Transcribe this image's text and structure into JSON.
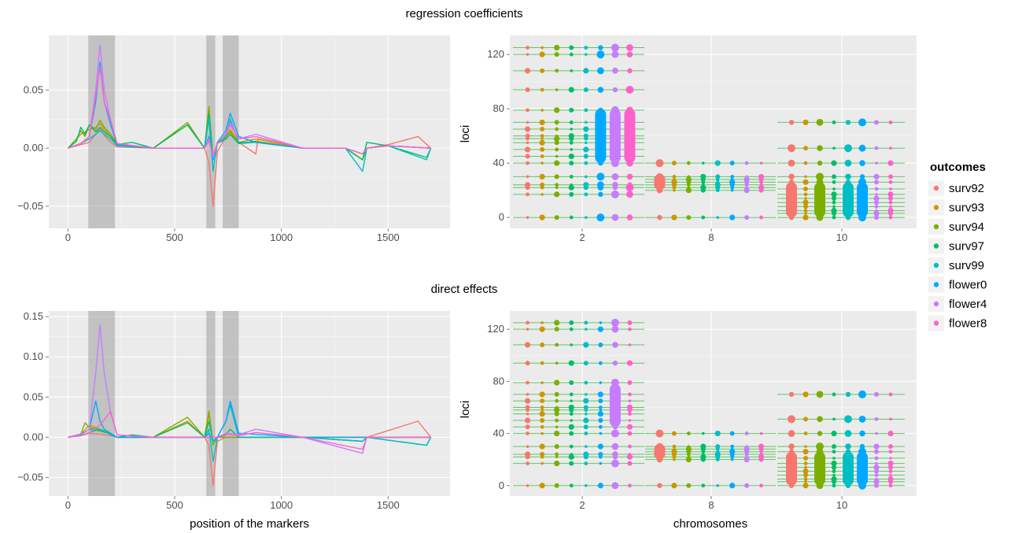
{
  "titles": {
    "top": "regression coefficients",
    "bottom": "direct effects"
  },
  "axis_labels": {
    "bottom_left_x": "position of the markers",
    "right_y": "loci",
    "bottom_right_x": "chromosomes"
  },
  "legend": {
    "title": "outcomes",
    "items": [
      {
        "label": "surv92",
        "color": "#F8766D"
      },
      {
        "label": "surv93",
        "color": "#CD9600"
      },
      {
        "label": "surv94",
        "color": "#7CAE00"
      },
      {
        "label": "surv97",
        "color": "#00BE67"
      },
      {
        "label": "surv99",
        "color": "#00BFC4"
      },
      {
        "label": "flower0",
        "color": "#00A9FF"
      },
      {
        "label": "flower4",
        "color": "#C77CFF"
      },
      {
        "label": "flower8",
        "color": "#FF61CC"
      }
    ]
  },
  "chart_data": [
    {
      "type": "line",
      "title": "regression coefficients",
      "xlabel": "",
      "ylabel": "",
      "xlim": [
        -90,
        1790
      ],
      "ylim": [
        -0.069,
        0.097
      ],
      "xticks": [
        "0",
        "500",
        "1000",
        "1500"
      ],
      "yticks": [
        "-0.05",
        "0.00",
        "0.05"
      ],
      "shaded_regions": [
        [
          95,
          220
        ],
        [
          648,
          690
        ],
        [
          725,
          800
        ]
      ],
      "series": [
        {
          "name": "surv92",
          "x": [
            0,
            60,
            100,
            130,
            150,
            170,
            200,
            230,
            400,
            640,
            660,
            680,
            700,
            740,
            760,
            800,
            880,
            890,
            1100,
            1300,
            1380,
            1400,
            1500,
            1640,
            1700
          ],
          "y": [
            0,
            0.003,
            0.005,
            0.012,
            0.017,
            0.011,
            0.005,
            0.001,
            0,
            0,
            -0.012,
            -0.05,
            -0.003,
            0.01,
            0.015,
            0.005,
            -0.005,
            0.008,
            0,
            0,
            -0.01,
            0,
            0.003,
            0.01,
            0
          ]
        },
        {
          "name": "surv93",
          "x": [
            0,
            60,
            100,
            130,
            150,
            170,
            200,
            230,
            400,
            560,
            640,
            660,
            680,
            700,
            740,
            760,
            800,
            880,
            1100,
            1300,
            1380,
            1400,
            1500,
            1700
          ],
          "y": [
            0,
            0.012,
            0.016,
            0.018,
            0.021,
            0.016,
            0.01,
            0.003,
            0,
            0.02,
            0,
            0.036,
            -0.01,
            0.005,
            0.01,
            0.016,
            0.005,
            0.008,
            0,
            0,
            -0.01,
            0,
            0.002,
            0
          ]
        },
        {
          "name": "surv94",
          "x": [
            0,
            40,
            60,
            80,
            100,
            130,
            150,
            170,
            200,
            230,
            400,
            560,
            640,
            660,
            680,
            700,
            740,
            760,
            800,
            880,
            1100,
            1300,
            1380,
            1400,
            1500,
            1700
          ],
          "y": [
            0,
            0.008,
            0.015,
            0.01,
            0.02,
            0.016,
            0.024,
            0.018,
            0.012,
            0.004,
            0,
            0.022,
            0,
            0.035,
            -0.01,
            0.005,
            0.01,
            0.014,
            0.004,
            0.006,
            0,
            0,
            -0.01,
            0,
            0.002,
            0
          ]
        },
        {
          "name": "surv97",
          "x": [
            0,
            40,
            60,
            80,
            100,
            130,
            150,
            170,
            200,
            230,
            300,
            400,
            560,
            640,
            660,
            680,
            700,
            740,
            760,
            800,
            880,
            1100,
            1300,
            1380,
            1400,
            1500,
            1680,
            1700
          ],
          "y": [
            0,
            0.006,
            0.018,
            0.012,
            0.02,
            0.014,
            0.018,
            0.014,
            0.01,
            0.003,
            0.005,
            0,
            0.02,
            0,
            0.03,
            -0.01,
            0.004,
            0.008,
            0.012,
            0.004,
            0.005,
            0,
            0,
            -0.01,
            0.005,
            0.002,
            -0.008,
            0
          ]
        },
        {
          "name": "surv99",
          "x": [
            0,
            60,
            100,
            130,
            150,
            170,
            200,
            230,
            400,
            640,
            660,
            680,
            700,
            740,
            760,
            800,
            880,
            1100,
            1300,
            1380,
            1400,
            1500,
            1680,
            1700
          ],
          "y": [
            0,
            0.004,
            0.008,
            0.012,
            0.015,
            0.012,
            0.008,
            0.002,
            0,
            0,
            0.025,
            -0.02,
            0.004,
            0.01,
            0.025,
            0.005,
            0.005,
            0,
            0,
            -0.02,
            0,
            0.002,
            -0.01,
            0
          ]
        },
        {
          "name": "flower0",
          "x": [
            0,
            60,
            100,
            130,
            150,
            170,
            200,
            230,
            400,
            640,
            660,
            680,
            700,
            740,
            760,
            800,
            880,
            1100,
            1300,
            1380,
            1400,
            1500,
            1700
          ],
          "y": [
            0,
            0.004,
            0.01,
            0.04,
            0.074,
            0.04,
            0.02,
            0.003,
            0,
            0,
            0.01,
            -0.01,
            0.005,
            0.015,
            0.03,
            0.01,
            0.005,
            0,
            0,
            -0.005,
            0,
            0.002,
            0
          ]
        },
        {
          "name": "flower4",
          "x": [
            0,
            60,
            100,
            130,
            150,
            170,
            200,
            230,
            400,
            640,
            660,
            680,
            700,
            740,
            760,
            800,
            880,
            1100,
            1300,
            1380,
            1400,
            1500,
            1700
          ],
          "y": [
            0,
            0.004,
            0.01,
            0.05,
            0.089,
            0.05,
            0.024,
            0.004,
            0,
            0,
            0.008,
            -0.008,
            0.004,
            0.012,
            0.022,
            0.008,
            0.012,
            0,
            0,
            -0.005,
            0,
            0.002,
            0
          ]
        },
        {
          "name": "flower8",
          "x": [
            0,
            60,
            100,
            130,
            150,
            170,
            200,
            230,
            400,
            640,
            660,
            680,
            700,
            740,
            760,
            800,
            880,
            1100,
            1300,
            1380,
            1400,
            1500,
            1700
          ],
          "y": [
            0,
            0.004,
            0.01,
            0.045,
            0.07,
            0.04,
            0.024,
            0.004,
            0,
            0,
            0.006,
            -0.006,
            0.004,
            0.012,
            0.02,
            0.008,
            0.01,
            0,
            0,
            -0.005,
            0,
            0.002,
            0
          ]
        }
      ]
    },
    {
      "type": "scatter",
      "title": "regression coefficients",
      "xlabel": "",
      "ylabel": "loci",
      "xticks": [
        "2",
        "8",
        "10"
      ],
      "ylim": [
        -8,
        134
      ],
      "yticks": [
        "0",
        "40",
        "80",
        "120"
      ],
      "chromosomes": [
        {
          "label": "2",
          "loci": [
            0,
            17,
            22,
            24,
            30,
            40,
            45,
            50,
            55,
            58,
            60,
            65,
            70,
            79,
            94,
            108,
            120,
            125
          ],
          "dense_outcomes": [
            "flower0",
            "flower4",
            "flower8"
          ],
          "dense_range": [
            40,
            80
          ]
        },
        {
          "label": "8",
          "loci": [
            0,
            20,
            22,
            24,
            26,
            28,
            30,
            40
          ],
          "dense_outcomes": [
            "surv92"
          ],
          "dense_range": [
            20,
            32
          ]
        },
        {
          "label": "10",
          "loci": [
            0,
            3,
            5,
            8,
            11,
            14,
            17,
            21,
            26,
            30,
            40,
            51,
            70
          ],
          "dense_outcomes": [
            "surv92",
            "surv94",
            "surv99",
            "flower0"
          ],
          "dense_range": [
            0,
            26
          ]
        }
      ]
    },
    {
      "type": "line",
      "title": "direct effects",
      "xlabel": "position of the markers",
      "ylabel": "",
      "xlim": [
        -90,
        1790
      ],
      "ylim": [
        -0.073,
        0.157
      ],
      "xticks": [
        "0",
        "500",
        "1000",
        "1500"
      ],
      "yticks": [
        "-0.05",
        "0.00",
        "0.05",
        "0.10",
        "0.15"
      ],
      "shaded_regions": [
        [
          95,
          220
        ],
        [
          648,
          690
        ],
        [
          725,
          800
        ]
      ],
      "series": [
        {
          "name": "surv92",
          "x": [
            0,
            60,
            100,
            150,
            200,
            230,
            400,
            640,
            660,
            680,
            700,
            740,
            800,
            1100,
            1380,
            1400,
            1640,
            1700
          ],
          "y": [
            0,
            0.002,
            0.005,
            0.004,
            0.002,
            0,
            0,
            0,
            -0.01,
            -0.06,
            -0.005,
            0,
            0,
            0,
            -0.005,
            0,
            0.02,
            0
          ]
        },
        {
          "name": "surv93",
          "x": [
            0,
            60,
            100,
            150,
            200,
            230,
            400,
            560,
            640,
            660,
            680,
            700,
            1100,
            1700
          ],
          "y": [
            0,
            0.004,
            0.015,
            0.01,
            0.005,
            0,
            0,
            0.02,
            0,
            0.033,
            -0.01,
            0,
            0,
            0
          ]
        },
        {
          "name": "surv94",
          "x": [
            0,
            60,
            80,
            100,
            150,
            200,
            230,
            400,
            560,
            640,
            660,
            680,
            700,
            1100,
            1700
          ],
          "y": [
            0,
            0.004,
            0.018,
            0.012,
            0.01,
            0.004,
            0,
            0,
            0.025,
            0,
            0.03,
            -0.01,
            0,
            0,
            0
          ]
        },
        {
          "name": "surv97",
          "x": [
            0,
            60,
            100,
            150,
            200,
            230,
            300,
            400,
            560,
            640,
            660,
            680,
            700,
            740,
            760,
            800,
            1100,
            1380,
            1400,
            1680,
            1700
          ],
          "y": [
            0,
            0.003,
            0.01,
            0.008,
            0.004,
            0,
            0.003,
            0,
            0.018,
            0,
            0.02,
            -0.005,
            0,
            0.003,
            0.01,
            0,
            0,
            -0.005,
            0,
            -0.01,
            0
          ]
        },
        {
          "name": "surv99",
          "x": [
            0,
            60,
            100,
            150,
            200,
            230,
            400,
            640,
            660,
            680,
            700,
            740,
            760,
            800,
            1100,
            1380,
            1400,
            1680,
            1700
          ],
          "y": [
            0,
            0.002,
            0.006,
            0.01,
            0.003,
            0,
            0,
            0,
            0.01,
            -0.03,
            0,
            0.02,
            0.04,
            0,
            0,
            -0.005,
            0,
            -0.01,
            0
          ]
        },
        {
          "name": "flower0",
          "x": [
            0,
            60,
            100,
            130,
            150,
            170,
            200,
            230,
            400,
            640,
            660,
            680,
            700,
            740,
            760,
            800,
            1100,
            1700
          ],
          "y": [
            0,
            0.004,
            0.01,
            0.045,
            0.02,
            0.01,
            0.005,
            0,
            0,
            0,
            0.005,
            -0.005,
            0,
            0.02,
            0.045,
            0.005,
            0,
            0
          ]
        },
        {
          "name": "flower4",
          "x": [
            0,
            60,
            100,
            130,
            150,
            170,
            200,
            230,
            400,
            640,
            700,
            740,
            800,
            880,
            1100,
            1380,
            1400,
            1700
          ],
          "y": [
            0,
            0.004,
            0.01,
            0.08,
            0.14,
            0.08,
            0.03,
            0.003,
            0,
            0,
            0,
            0.005,
            0.003,
            0.01,
            0,
            -0.02,
            0,
            0
          ]
        },
        {
          "name": "flower8",
          "x": [
            0,
            60,
            100,
            150,
            200,
            230,
            400,
            640,
            700,
            740,
            800,
            880,
            1100,
            1380,
            1400,
            1700
          ],
          "y": [
            0,
            0.002,
            0.006,
            0.015,
            0.032,
            0.003,
            0,
            0,
            0,
            0.004,
            0.002,
            0.006,
            0,
            -0.015,
            0,
            0
          ]
        }
      ]
    },
    {
      "type": "scatter",
      "title": "direct effects",
      "xlabel": "chromosomes",
      "ylabel": "loci",
      "xticks": [
        "2",
        "8",
        "10"
      ],
      "ylim": [
        -8,
        134
      ],
      "yticks": [
        "0",
        "40",
        "80",
        "120"
      ],
      "chromosomes": [
        {
          "label": "2",
          "loci": [
            0,
            17,
            22,
            24,
            30,
            40,
            45,
            50,
            55,
            58,
            60,
            65,
            70,
            79,
            94,
            108,
            120,
            125
          ],
          "dense_outcomes": [
            "flower4"
          ],
          "dense_range": [
            45,
            78
          ]
        },
        {
          "label": "8",
          "loci": [
            0,
            20,
            22,
            24,
            26,
            28,
            30,
            40
          ],
          "dense_outcomes": [
            "surv92"
          ],
          "dense_range": [
            20,
            32
          ]
        },
        {
          "label": "10",
          "loci": [
            0,
            3,
            5,
            8,
            11,
            14,
            17,
            21,
            26,
            30,
            40,
            51,
            70
          ],
          "dense_outcomes": [
            "surv92",
            "surv94",
            "surv99",
            "flower0"
          ],
          "dense_range": [
            0,
            26
          ]
        }
      ]
    }
  ]
}
